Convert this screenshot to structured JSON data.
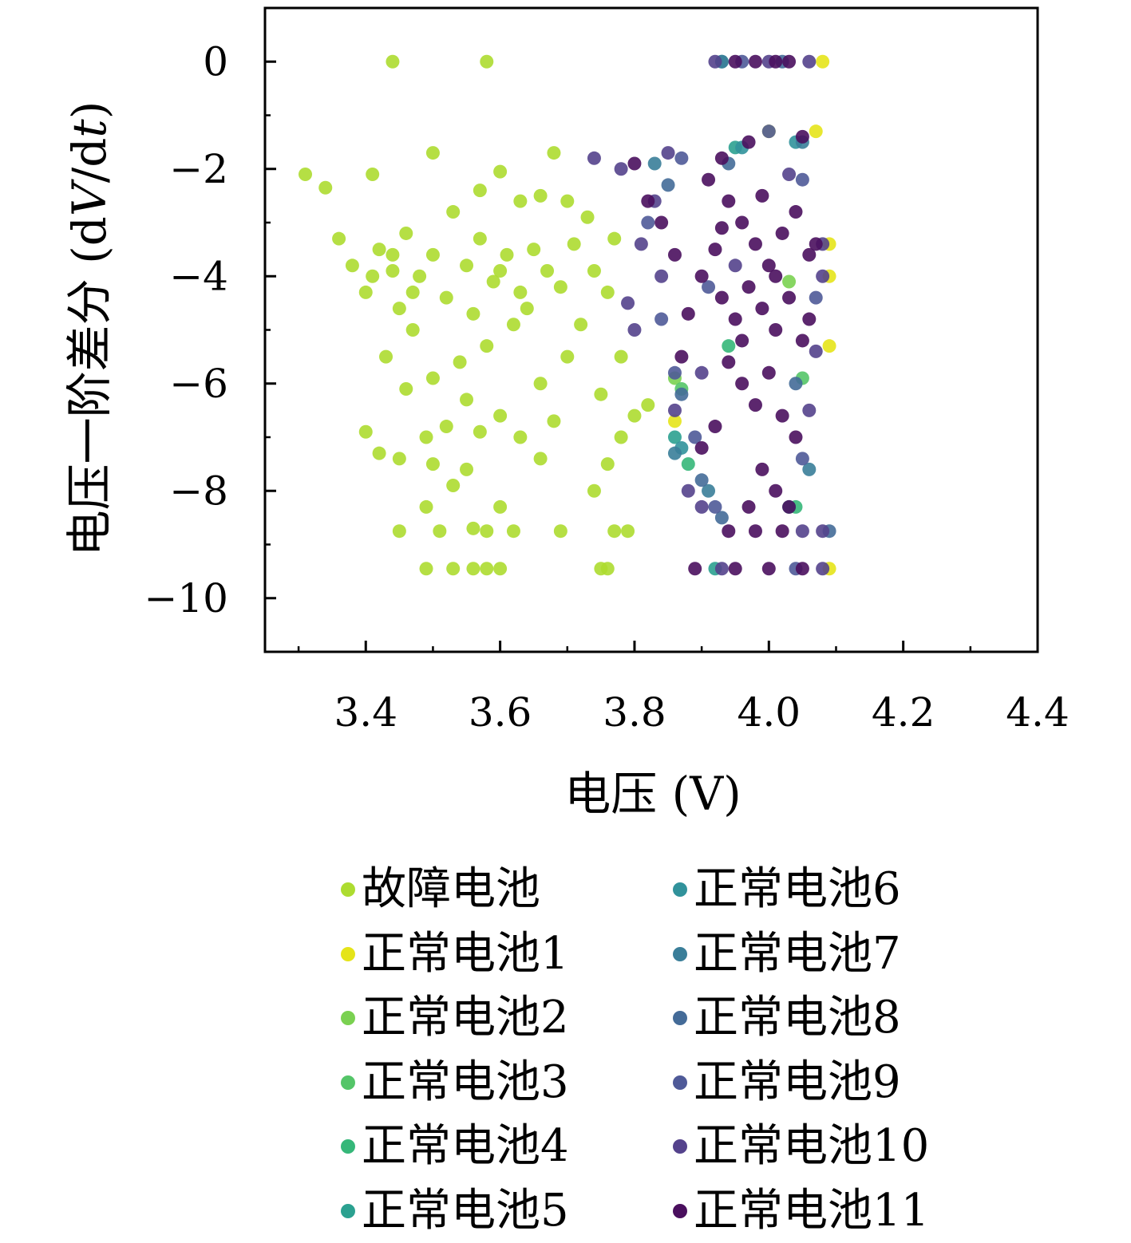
{
  "chart_data": {
    "type": "scatter",
    "xlabel": "电压 (V)",
    "ylabel_parts": [
      "电压一阶差分 (d",
      "V",
      "/d",
      "t",
      ")"
    ],
    "xlim": [
      3.25,
      4.4
    ],
    "ylim": [
      -11.0,
      1.0
    ],
    "xticks": [
      3.4,
      3.6,
      3.8,
      4.0,
      4.2,
      4.4
    ],
    "xtick_labels": [
      "3.4",
      "3.6",
      "3.8",
      "4.0",
      "4.2",
      "4.4"
    ],
    "xminor": [
      3.3,
      3.5,
      3.7,
      3.9,
      4.1,
      4.3
    ],
    "yticks": [
      0,
      -2,
      -4,
      -6,
      -8,
      -10
    ],
    "ytick_labels": [
      "0",
      "−2",
      "−4",
      "−6",
      "−8",
      "−10"
    ],
    "yminor": [
      -1,
      -3,
      -5,
      -7,
      -9
    ],
    "grid": false,
    "legend_placement": "below",
    "series": [
      {
        "name": "故障电池",
        "color": "#addc30",
        "points": [
          [
            3.44,
            0
          ],
          [
            3.58,
            0
          ],
          [
            3.31,
            -2.1
          ],
          [
            3.34,
            -2.35
          ],
          [
            3.5,
            -1.7
          ],
          [
            3.68,
            -1.7
          ],
          [
            3.6,
            -2.05
          ],
          [
            3.41,
            -2.1
          ],
          [
            3.36,
            -3.3
          ],
          [
            3.38,
            -3.8
          ],
          [
            3.4,
            -4.3
          ],
          [
            3.42,
            -3.5
          ],
          [
            3.44,
            -3.9
          ],
          [
            3.46,
            -3.2
          ],
          [
            3.48,
            -4.0
          ],
          [
            3.45,
            -4.6
          ],
          [
            3.47,
            -5.0
          ],
          [
            3.43,
            -5.5
          ],
          [
            3.5,
            -3.6
          ],
          [
            3.52,
            -4.4
          ],
          [
            3.55,
            -3.8
          ],
          [
            3.57,
            -3.3
          ],
          [
            3.59,
            -4.1
          ],
          [
            3.61,
            -3.6
          ],
          [
            3.63,
            -4.3
          ],
          [
            3.65,
            -3.5
          ],
          [
            3.67,
            -3.9
          ],
          [
            3.69,
            -4.2
          ],
          [
            3.62,
            -4.9
          ],
          [
            3.58,
            -5.3
          ],
          [
            3.54,
            -5.6
          ],
          [
            3.5,
            -5.9
          ],
          [
            3.46,
            -6.1
          ],
          [
            3.4,
            -6.9
          ],
          [
            3.42,
            -7.3
          ],
          [
            3.45,
            -7.4
          ],
          [
            3.49,
            -7.0
          ],
          [
            3.5,
            -7.5
          ],
          [
            3.53,
            -7.9
          ],
          [
            3.55,
            -7.6
          ],
          [
            3.57,
            -6.9
          ],
          [
            3.6,
            -6.6
          ],
          [
            3.63,
            -7.0
          ],
          [
            3.66,
            -7.4
          ],
          [
            3.68,
            -6.7
          ],
          [
            3.6,
            -8.3
          ],
          [
            3.56,
            -8.7
          ],
          [
            3.58,
            -8.75
          ],
          [
            3.62,
            -8.75
          ],
          [
            3.49,
            -8.3
          ],
          [
            3.51,
            -8.75
          ],
          [
            3.45,
            -8.75
          ],
          [
            3.69,
            -8.75
          ],
          [
            3.49,
            -9.45
          ],
          [
            3.53,
            -9.45
          ],
          [
            3.56,
            -9.45
          ],
          [
            3.58,
            -9.45
          ],
          [
            3.6,
            -9.45
          ],
          [
            3.75,
            -9.45
          ],
          [
            3.76,
            -9.45
          ],
          [
            3.77,
            -8.75
          ],
          [
            3.79,
            -8.75
          ],
          [
            3.74,
            -8.0
          ],
          [
            3.76,
            -7.5
          ],
          [
            3.78,
            -7.0
          ],
          [
            3.8,
            -6.6
          ],
          [
            3.82,
            -6.4
          ],
          [
            3.75,
            -6.2
          ],
          [
            3.78,
            -5.5
          ],
          [
            3.72,
            -4.9
          ],
          [
            3.76,
            -4.3
          ],
          [
            3.74,
            -3.9
          ],
          [
            3.71,
            -3.4
          ],
          [
            3.73,
            -2.9
          ],
          [
            3.77,
            -3.3
          ],
          [
            3.7,
            -2.6
          ],
          [
            3.66,
            -2.5
          ],
          [
            3.53,
            -2.8
          ],
          [
            3.57,
            -2.4
          ],
          [
            3.63,
            -2.6
          ],
          [
            3.7,
            -5.5
          ],
          [
            3.66,
            -6.0
          ],
          [
            3.55,
            -6.3
          ],
          [
            3.52,
            -6.8
          ],
          [
            3.44,
            -3.6
          ],
          [
            3.47,
            -4.3
          ],
          [
            3.6,
            -3.9
          ],
          [
            3.64,
            -4.6
          ],
          [
            3.41,
            -4.0
          ],
          [
            3.56,
            -4.7
          ]
        ]
      },
      {
        "name": "正常电池1",
        "color": "#e5e419",
        "points": [
          [
            3.86,
            -6.7
          ],
          [
            4.0,
            -1.3
          ],
          [
            4.07,
            -1.3
          ],
          [
            4.09,
            -3.4
          ],
          [
            4.09,
            -4.0
          ],
          [
            4.09,
            -5.3
          ],
          [
            4.09,
            -9.45
          ],
          [
            4.08,
            0
          ]
        ]
      },
      {
        "name": "正常电池2",
        "color": "#7ad151",
        "points": [
          [
            3.86,
            -5.9
          ],
          [
            4.03,
            -4.1
          ]
        ]
      },
      {
        "name": "正常电池3",
        "color": "#54c568",
        "points": [
          [
            3.87,
            -6.1
          ],
          [
            4.05,
            -5.9
          ]
        ]
      },
      {
        "name": "正常电池4",
        "color": "#35b779",
        "points": [
          [
            3.88,
            -7.5
          ],
          [
            4.04,
            -8.3
          ],
          [
            3.94,
            -5.3
          ]
        ]
      },
      {
        "name": "正常电池5",
        "color": "#2ba190",
        "points": [
          [
            3.86,
            -7.0
          ],
          [
            3.95,
            -1.6
          ],
          [
            4.03,
            -8.3
          ],
          [
            3.92,
            -9.45
          ]
        ]
      },
      {
        "name": "正常电池6",
        "color": "#31929b",
        "points": [
          [
            3.87,
            -7.2
          ],
          [
            3.96,
            -1.6
          ],
          [
            4.04,
            -1.5
          ],
          [
            3.93,
            0
          ]
        ]
      },
      {
        "name": "正常电池7",
        "color": "#3a7e99",
        "points": [
          [
            3.83,
            -1.9
          ],
          [
            3.86,
            -7.3
          ],
          [
            3.91,
            -8.0
          ],
          [
            3.93,
            0
          ],
          [
            4.05,
            -1.5
          ],
          [
            4.06,
            -7.6
          ]
        ]
      },
      {
        "name": "正常电池8",
        "color": "#446b98",
        "points": [
          [
            3.85,
            -2.3
          ],
          [
            3.87,
            -6.2
          ],
          [
            3.9,
            -7.8
          ],
          [
            3.93,
            -8.5
          ],
          [
            4.04,
            -6.0
          ],
          [
            4.09,
            -8.75
          ],
          [
            3.94,
            -1.9
          ],
          [
            4.02,
            0
          ]
        ]
      },
      {
        "name": "正常电池9",
        "color": "#4f5a98",
        "points": [
          [
            3.87,
            -1.8
          ],
          [
            3.82,
            -3.0
          ],
          [
            3.84,
            -4.8
          ],
          [
            3.86,
            -5.8
          ],
          [
            3.89,
            -7.0
          ],
          [
            3.92,
            -8.3
          ],
          [
            4.0,
            -1.3
          ],
          [
            4.05,
            -2.2
          ],
          [
            4.07,
            -4.4
          ],
          [
            4.05,
            -7.4
          ],
          [
            3.96,
            0
          ],
          [
            4.04,
            -9.45
          ],
          [
            3.91,
            -4.2
          ]
        ]
      },
      {
        "name": "正常电池10",
        "color": "#54428c",
        "points": [
          [
            3.74,
            -1.8
          ],
          [
            3.78,
            -2.0
          ],
          [
            3.85,
            -1.7
          ],
          [
            3.83,
            -2.6
          ],
          [
            3.81,
            -3.4
          ],
          [
            3.79,
            -4.5
          ],
          [
            3.8,
            -5.0
          ],
          [
            3.84,
            -4.0
          ],
          [
            3.86,
            -6.5
          ],
          [
            3.88,
            -8.0
          ],
          [
            3.9,
            -8.3
          ],
          [
            3.92,
            0
          ],
          [
            4.0,
            0
          ],
          [
            4.06,
            0
          ],
          [
            4.08,
            -3.4
          ],
          [
            4.08,
            -4.0
          ],
          [
            4.07,
            -5.4
          ],
          [
            4.06,
            -6.5
          ],
          [
            4.05,
            -8.75
          ],
          [
            4.08,
            -8.75
          ],
          [
            3.93,
            -9.45
          ],
          [
            4.08,
            -9.45
          ],
          [
            3.95,
            -3.8
          ],
          [
            3.9,
            -5.8
          ],
          [
            4.03,
            -2.1
          ]
        ]
      },
      {
        "name": "正常电池11",
        "color": "#4a0f5e",
        "points": [
          [
            3.95,
            0
          ],
          [
            3.98,
            0
          ],
          [
            4.01,
            0
          ],
          [
            4.03,
            0
          ],
          [
            3.93,
            -1.8
          ],
          [
            3.97,
            -1.5
          ],
          [
            4.05,
            -1.4
          ],
          [
            3.91,
            -2.2
          ],
          [
            3.94,
            -2.6
          ],
          [
            3.96,
            -3.0
          ],
          [
            3.98,
            -3.4
          ],
          [
            4.0,
            -3.8
          ],
          [
            4.02,
            -3.2
          ],
          [
            4.04,
            -2.8
          ],
          [
            4.06,
            -3.6
          ],
          [
            3.92,
            -3.5
          ],
          [
            3.9,
            -4.0
          ],
          [
            3.93,
            -4.4
          ],
          [
            3.95,
            -4.8
          ],
          [
            3.97,
            -4.2
          ],
          [
            3.99,
            -4.6
          ],
          [
            4.01,
            -5.0
          ],
          [
            4.03,
            -4.4
          ],
          [
            4.05,
            -5.2
          ],
          [
            3.88,
            -4.7
          ],
          [
            3.86,
            -3.6
          ],
          [
            3.84,
            -3.0
          ],
          [
            3.82,
            -2.6
          ],
          [
            3.8,
            -1.9
          ],
          [
            3.94,
            -5.6
          ],
          [
            3.96,
            -6.0
          ],
          [
            3.98,
            -6.4
          ],
          [
            4.0,
            -5.8
          ],
          [
            4.02,
            -6.6
          ],
          [
            4.04,
            -7.0
          ],
          [
            3.92,
            -6.8
          ],
          [
            3.9,
            -7.2
          ],
          [
            3.99,
            -7.6
          ],
          [
            4.01,
            -8.0
          ],
          [
            3.97,
            -8.3
          ],
          [
            4.03,
            -8.3
          ],
          [
            3.94,
            -8.75
          ],
          [
            3.98,
            -8.75
          ],
          [
            4.02,
            -8.75
          ],
          [
            3.89,
            -9.45
          ],
          [
            3.95,
            -9.45
          ],
          [
            4.0,
            -9.45
          ],
          [
            4.05,
            -9.45
          ],
          [
            4.07,
            -3.4
          ],
          [
            4.06,
            -4.8
          ],
          [
            3.87,
            -5.5
          ],
          [
            3.93,
            -3.1
          ],
          [
            3.99,
            -2.5
          ],
          [
            4.01,
            -4.0
          ],
          [
            3.96,
            -5.2
          ]
        ]
      }
    ]
  }
}
